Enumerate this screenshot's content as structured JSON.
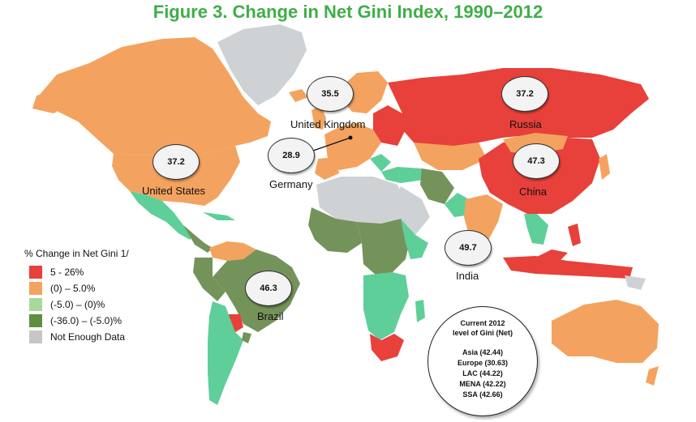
{
  "title": "Figure 3. Change in Net Gini Index, 1990–2012",
  "colors": {
    "red": "#e8403a",
    "orange": "#f3a35f",
    "light_green": "#5fcf9a",
    "dark_green": "#74935a",
    "gray": "#cfd2d5",
    "title_green": "#3fae49"
  },
  "callouts": [
    {
      "id": "us",
      "value": "37.2",
      "label": "United States"
    },
    {
      "id": "uk",
      "value": "35.5",
      "label": "United Kingdom"
    },
    {
      "id": "de",
      "value": "28.9",
      "label": "Germany"
    },
    {
      "id": "ru",
      "value": "37.2",
      "label": "Russia"
    },
    {
      "id": "cn",
      "value": "47.3",
      "label": "China"
    },
    {
      "id": "in",
      "value": "49.7",
      "label": "India"
    },
    {
      "id": "br",
      "value": "46.3",
      "label": "Brazil"
    }
  ],
  "legend": {
    "title": "% Change in Net Gini 1/",
    "items": [
      {
        "label": "5 - 26%",
        "color": "#e8403a"
      },
      {
        "label": "(0) – 5.0%",
        "color": "#f3a35f"
      },
      {
        "label": "(-5.0) – (0)%",
        "color": "#a8d99a"
      },
      {
        "label": "(-36.0) – (-5.0)%",
        "color": "#5f8f3e"
      },
      {
        "label": "Not Enough Data",
        "color": "#c4c6c8"
      }
    ]
  },
  "summary": {
    "heading_line1": "Current 2012",
    "heading_line2": "level of Gini (Net)",
    "regions": [
      "Asia (42.44)",
      "Europe (30.63)",
      "LAC (44.22)",
      "MENA (42.22)",
      "SSA (42.66)"
    ]
  }
}
